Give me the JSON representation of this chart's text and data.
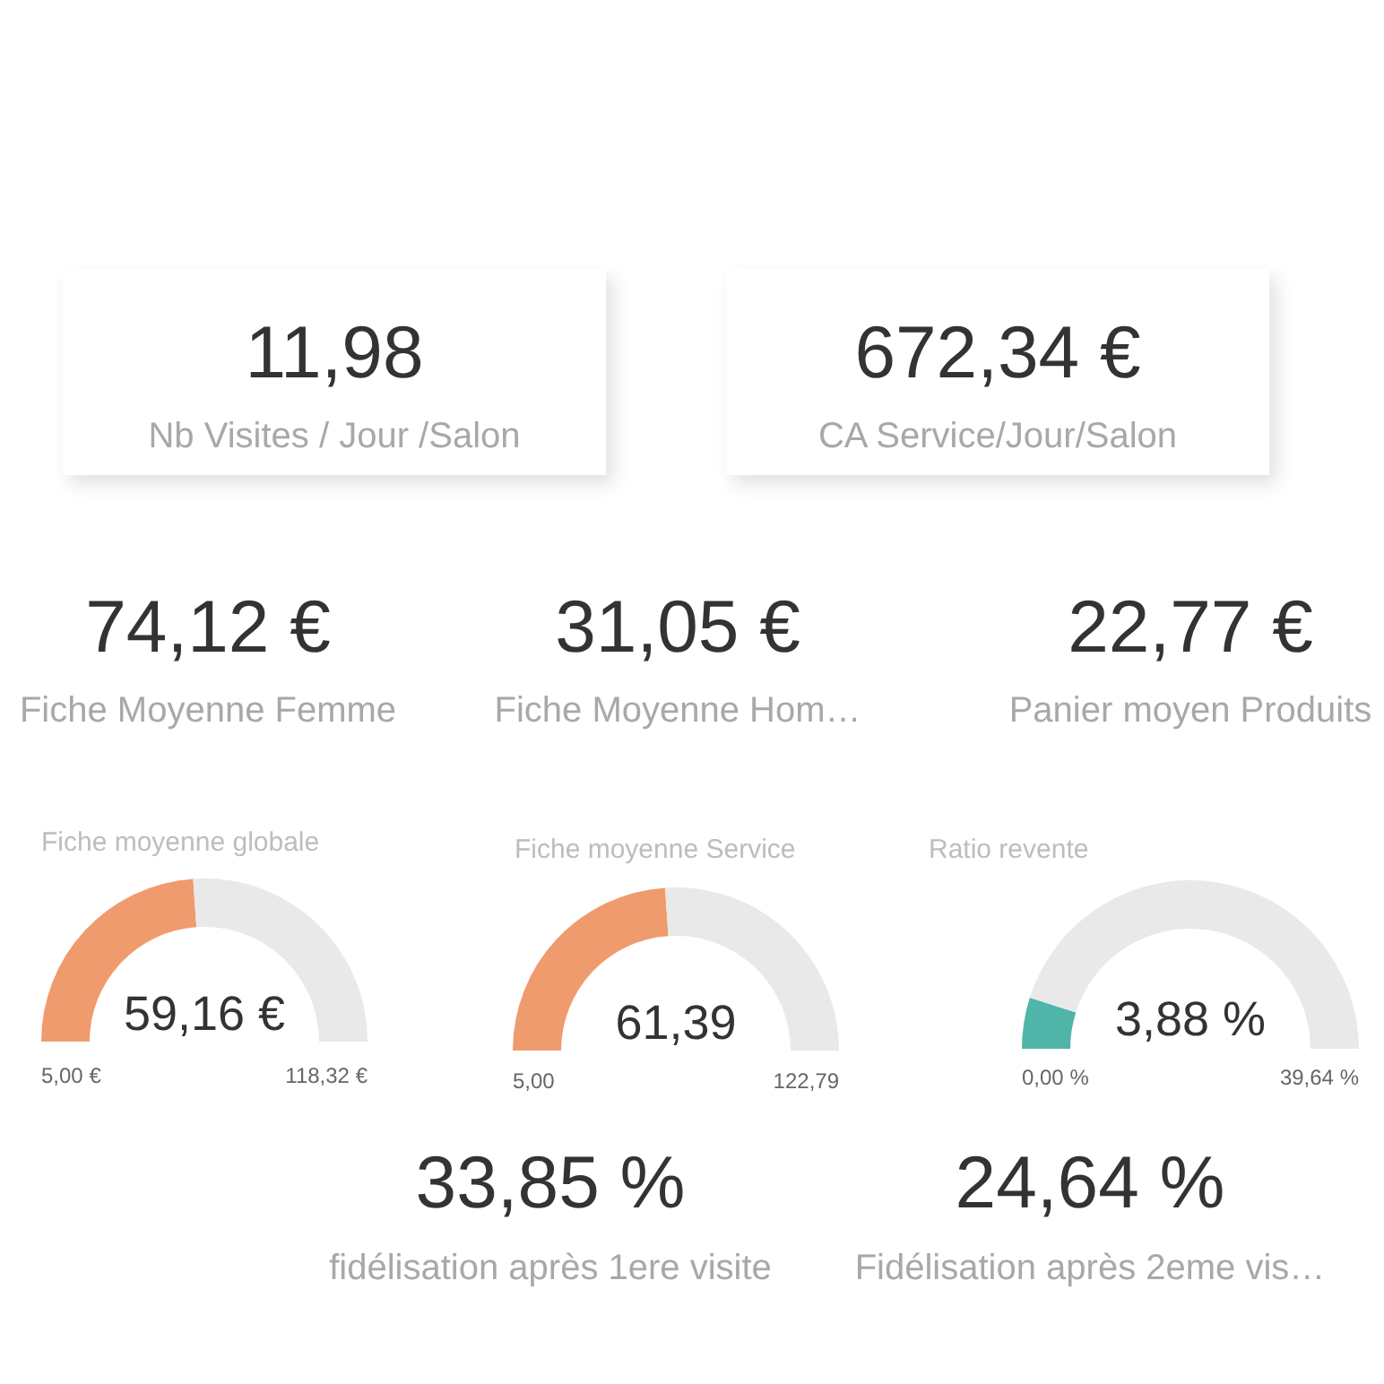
{
  "chart_data": [
    {
      "type": "other",
      "title": "11,98",
      "subtitle": "Nb Visites / Jour /Salon"
    },
    {
      "type": "other",
      "title": "672,34 €",
      "subtitle": "CA Service/Jour/Salon"
    },
    {
      "type": "other",
      "title": "74,12 €",
      "subtitle": "Fiche Moyenne Femme"
    },
    {
      "type": "other",
      "title": "31,05 €",
      "subtitle": "Fiche Moyenne Hom…"
    },
    {
      "type": "other",
      "title": "22,77 €",
      "subtitle": "Panier moyen Produits"
    },
    {
      "type": "donut",
      "title": "Fiche moyenne globale",
      "categories": [
        null,
        null
      ],
      "values": [
        47.8,
        52.2
      ],
      "colors": [
        "#f09b6e",
        "#e9e9e9"
      ],
      "annotations": [
        "59,16 €",
        "5,00 €",
        "118,32 €"
      ]
    },
    {
      "type": "donut",
      "title": "Fiche moyenne Service",
      "categories": [
        null,
        null
      ],
      "values": [
        47.9,
        52.1
      ],
      "colors": [
        "#f09b6e",
        "#e9e9e9"
      ],
      "annotations": [
        "61,39",
        "5,00",
        "122,79"
      ]
    },
    {
      "type": "donut",
      "title": "Ratio revente",
      "categories": [
        null,
        null
      ],
      "values": [
        9.8,
        90.2
      ],
      "colors": [
        "#4fb5a8",
        "#e9e9e9"
      ],
      "annotations": [
        "3,88 %",
        "0,00 %",
        "39,64 %"
      ]
    },
    {
      "type": "other",
      "title": "33,85 %",
      "subtitle": "fidélisation après 1ere visite"
    },
    {
      "type": "other",
      "title": "24,64 %",
      "subtitle": "Fidélisation après 2eme vis…"
    }
  ]
}
